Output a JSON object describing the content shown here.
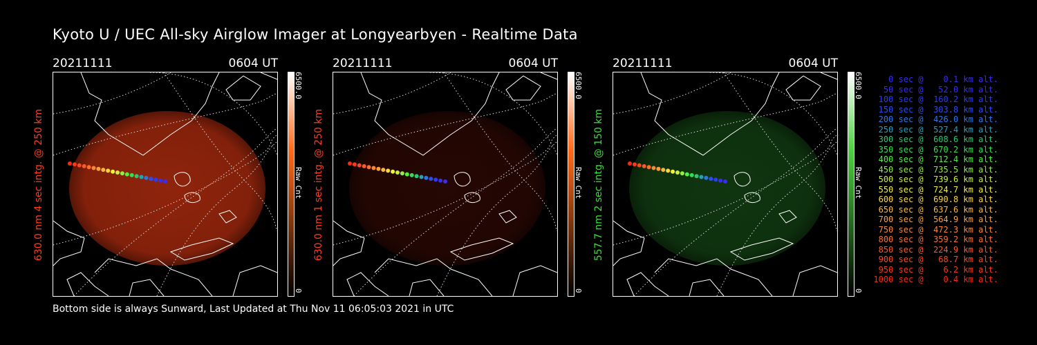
{
  "title": "Kyoto U / UEC All-sky Airglow Imager at Longyearbyen - Realtime Data",
  "footer": "Bottom side is always Sunward, Last Updated at Thu Nov 11 06:05:03 2021 in UTC",
  "panels": [
    {
      "date": "20211111",
      "time": "0604 UT",
      "ylabel": "630.0 nm 4 sec intg. @ 250 km",
      "label_color": "#ff3c1e",
      "cbar_max": "6500.0",
      "cbar_unit": "Raw Cnt",
      "cbar_min": "0",
      "cbar_color": "#ff6a1a",
      "airglow": "#c03010",
      "airglow_intensity": 0.75
    },
    {
      "date": "20211111",
      "time": "0604 UT",
      "ylabel": "630.0 nm 1 sec intg. @ 250 km",
      "label_color": "#ff3c1e",
      "cbar_max": "6500.0",
      "cbar_unit": "Raw Cnt",
      "cbar_min": "0",
      "cbar_color": "#ff6a1a",
      "airglow": "#6a1408",
      "airglow_intensity": 0.35
    },
    {
      "date": "20211111",
      "time": "0604 UT",
      "ylabel": "557.7 nm 2 sec intg. @ 150 km",
      "label_color": "#38e038",
      "cbar_max": "6500.0",
      "cbar_unit": "Raw Cnt",
      "cbar_min": "0",
      "cbar_color": "#4cd040",
      "airglow": "#1f6b1f",
      "airglow_intensity": 0.5
    }
  ],
  "legend": [
    {
      "text": "   0 sec @    0.1 km alt.",
      "color": "#3a2cf0"
    },
    {
      "text": "  50 sec @   52.0 km alt.",
      "color": "#3a2cf0"
    },
    {
      "text": " 100 sec @  160.2 km alt.",
      "color": "#2c3cf0"
    },
    {
      "text": " 150 sec @  303.8 km alt.",
      "color": "#2c4cf0"
    },
    {
      "text": " 200 sec @  426.0 km alt.",
      "color": "#2a78e8"
    },
    {
      "text": " 250 sec @  527.4 km alt.",
      "color": "#28a0b8"
    },
    {
      "text": " 300 sec @  608.6 km alt.",
      "color": "#2cc870"
    },
    {
      "text": " 350 sec @  670.2 km alt.",
      "color": "#30e050"
    },
    {
      "text": " 400 sec @  712.4 km alt.",
      "color": "#50f040"
    },
    {
      "text": " 450 sec @  735.5 km alt.",
      "color": "#90f040"
    },
    {
      "text": " 500 sec @  739.6 km alt.",
      "color": "#c8f040"
    },
    {
      "text": " 550 sec @  724.7 km alt.",
      "color": "#f0f040"
    },
    {
      "text": " 600 sec @  690.8 km alt.",
      "color": "#f8d840"
    },
    {
      "text": " 650 sec @  637.6 km alt.",
      "color": "#f8b840"
    },
    {
      "text": " 700 sec @  564.9 km alt.",
      "color": "#f8a040"
    },
    {
      "text": " 750 sec @  472.3 km alt.",
      "color": "#f88838"
    },
    {
      "text": " 800 sec @  359.2 km alt.",
      "color": "#f87030"
    },
    {
      "text": " 850 sec @  224.9 km alt.",
      "color": "#f85a28"
    },
    {
      "text": " 900 sec @   68.7 km alt.",
      "color": "#f84a20"
    },
    {
      "text": " 950 sec @    6.2 km alt.",
      "color": "#f83a18"
    },
    {
      "text": "1000 sec @    0.4 km alt.",
      "color": "#f82a10"
    }
  ]
}
